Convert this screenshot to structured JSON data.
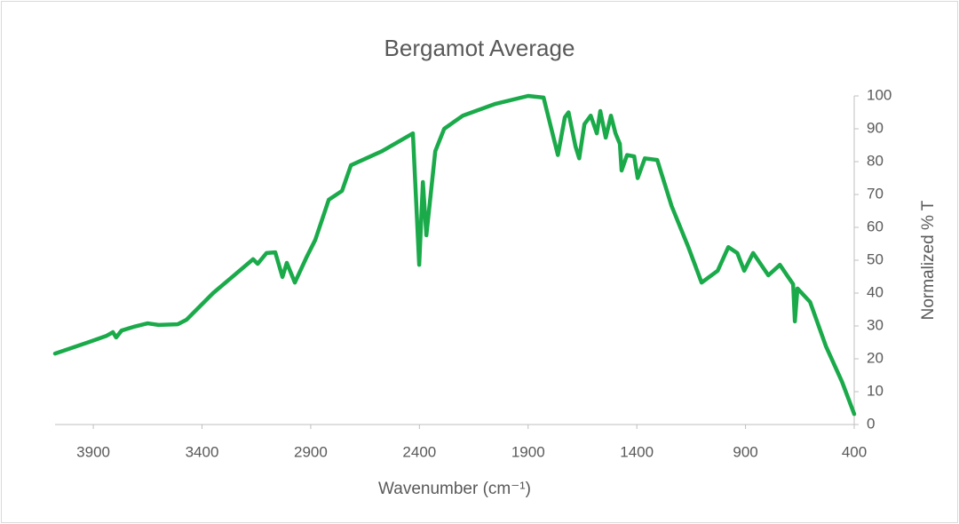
{
  "chart_data": {
    "type": "line",
    "title": "Bergamot Average",
    "x_label": "Wavenumber (cm⁻¹)",
    "y_label": "Normalized % T",
    "xlim": [
      4076,
      400
    ],
    "xticks": [
      3900,
      3400,
      2900,
      2400,
      1900,
      1400,
      900,
      400
    ],
    "ylim": [
      0,
      100
    ],
    "yticks": [
      0,
      10,
      20,
      30,
      40,
      50,
      60,
      70,
      80,
      90,
      100
    ],
    "y_axis_side": "right",
    "grid": false,
    "series": [
      {
        "name": "Bergamot Average",
        "color": "#1aaa4a",
        "x": [
          4076,
          3920,
          3839,
          3810,
          3795,
          3770,
          3716,
          3650,
          3600,
          3512,
          3471,
          3349,
          3165,
          3144,
          3103,
          3063,
          3030,
          3010,
          2973,
          2920,
          2879,
          2817,
          2756,
          2715,
          2572,
          2430,
          2401,
          2384,
          2368,
          2327,
          2286,
          2200,
          2050,
          1900,
          1829,
          1763,
          1731,
          1714,
          1682,
          1665,
          1641,
          1612,
          1584,
          1568,
          1543,
          1519,
          1498,
          1478,
          1470,
          1445,
          1412,
          1396,
          1363,
          1306,
          1240,
          1163,
          1102,
          1028,
          979,
          938,
          906,
          865,
          795,
          742,
          681,
          673,
          661,
          603,
          530,
          456,
          400
        ],
        "values": [
          21.6,
          25.1,
          27,
          28.1,
          26.5,
          28.6,
          29.7,
          30.8,
          30.3,
          30.5,
          31.9,
          40,
          50.3,
          48.9,
          52.2,
          52.4,
          44.9,
          49.2,
          43.2,
          50.8,
          56.2,
          68.4,
          71.1,
          78.9,
          83.2,
          88.6,
          48.6,
          73.8,
          57.6,
          83.2,
          90,
          94,
          97.6,
          100,
          99.5,
          82,
          93.5,
          95,
          84.6,
          81,
          91.4,
          94,
          88.6,
          95.4,
          87.3,
          94,
          88.6,
          85.4,
          77.3,
          82,
          81.6,
          75,
          81,
          80.5,
          66.5,
          54,
          43.2,
          46.8,
          54,
          52.2,
          46.8,
          52.2,
          45.4,
          48.6,
          42.7,
          31.4,
          41.4,
          37.3,
          23.8,
          13,
          3.2
        ]
      }
    ]
  }
}
